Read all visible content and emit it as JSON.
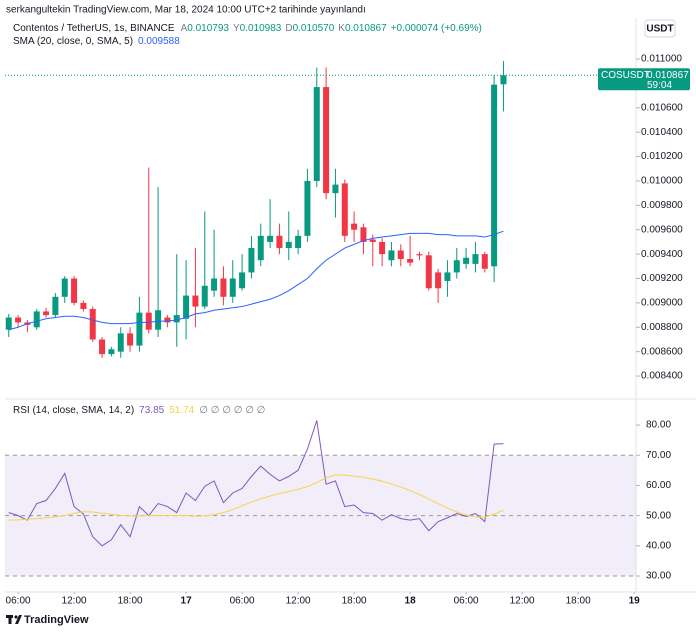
{
  "published": "serkangultekin TradingView.com, Mar 18, 2024 10:00 UTC+2 tarihinde yayınlandı",
  "footer": "TradingView",
  "chart_data": [
    {
      "type": "candlestick",
      "title": "Contentos / TetherUS, 1s, BINANCE",
      "legend": [
        {
          "label": "A",
          "value": "0.010793"
        },
        {
          "label": "Y",
          "value": "0.010983"
        },
        {
          "label": "D",
          "value": "0.010570"
        },
        {
          "label": "K",
          "value": "0.010867"
        }
      ],
      "change": "+0.000074 (+0.69%)",
      "currency": "USDT",
      "up_color": "#089981",
      "down_color": "#f23645",
      "open": [
        0.00878,
        0.00888,
        0.00884,
        0.0088,
        0.00893,
        0.0089,
        0.00905,
        0.0092,
        0.009,
        0.00895,
        0.0087,
        0.00858,
        0.0086,
        0.00875,
        0.00865,
        0.00892,
        0.00878,
        0.00888,
        0.00884,
        0.00887,
        0.00906,
        0.00897,
        0.0091,
        0.0092,
        0.00905,
        0.00912,
        0.00925,
        0.00935,
        0.0095,
        0.00955,
        0.00945,
        0.00945,
        0.00955,
        0.01,
        0.01077,
        0.0099,
        0.00998,
        0.00965,
        0.00962,
        0.00952,
        0.0095,
        0.00935,
        0.00943,
        0.00936,
        0.0094,
        0.00939,
        0.00925,
        0.00918,
        0.00925,
        0.00932,
        0.00932,
        0.0094,
        0.0093,
        0.010793
      ],
      "high": [
        0.00891,
        0.0089,
        0.00886,
        0.00895,
        0.00896,
        0.00908,
        0.00922,
        0.00922,
        0.00902,
        0.00897,
        0.00872,
        0.00864,
        0.0088,
        0.0088,
        0.00905,
        0.01011,
        0.00995,
        0.0089,
        0.0094,
        0.00935,
        0.00945,
        0.00975,
        0.0096,
        0.0093,
        0.00935,
        0.0094,
        0.00955,
        0.00965,
        0.00985,
        0.00965,
        0.00975,
        0.0096,
        0.0101,
        0.01093,
        0.01093,
        0.0101,
        0.01001,
        0.00975,
        0.00965,
        0.00956,
        0.00953,
        0.0095,
        0.00948,
        0.00955,
        0.00942,
        0.00942,
        0.00928,
        0.00935,
        0.00945,
        0.00945,
        0.0095,
        0.00942,
        0.01087,
        0.010983
      ],
      "low": [
        0.00872,
        0.0088,
        0.00876,
        0.00878,
        0.00888,
        0.00888,
        0.009,
        0.00898,
        0.00893,
        0.00868,
        0.00855,
        0.00856,
        0.00855,
        0.0086,
        0.0086,
        0.00875,
        0.00872,
        0.0088,
        0.00864,
        0.0087,
        0.0088,
        0.00895,
        0.00905,
        0.00898,
        0.009,
        0.0091,
        0.0092,
        0.0093,
        0.00945,
        0.0094,
        0.00935,
        0.0094,
        0.0095,
        0.00995,
        0.00985,
        0.0097,
        0.0095,
        0.0095,
        0.0094,
        0.0093,
        0.0093,
        0.0093,
        0.0093,
        0.0093,
        0.00935,
        0.0091,
        0.009,
        0.00905,
        0.0092,
        0.00928,
        0.00925,
        0.00925,
        0.00917,
        0.01057
      ],
      "close": [
        0.00888,
        0.00884,
        0.00882,
        0.00893,
        0.0089,
        0.00905,
        0.0092,
        0.009,
        0.00895,
        0.0087,
        0.00858,
        0.00862,
        0.00875,
        0.00865,
        0.00892,
        0.00878,
        0.00894,
        0.00884,
        0.0089,
        0.00906,
        0.00897,
        0.00914,
        0.0092,
        0.00905,
        0.0092,
        0.00925,
        0.00945,
        0.00955,
        0.00955,
        0.00945,
        0.0095,
        0.00955,
        0.01,
        0.01077,
        0.0099,
        0.00997,
        0.00955,
        0.0096,
        0.0095,
        0.0095,
        0.0094,
        0.00943,
        0.00936,
        0.00933,
        0.00939,
        0.00912,
        0.00912,
        0.00925,
        0.00935,
        0.00937,
        0.0094,
        0.00928,
        0.01079,
        0.010867
      ],
      "sma": {
        "name": "SMA (20, close, 0, SMA, 5)",
        "value_label": "0.009588",
        "color": "#2962ff",
        "values": [
          0.00878,
          0.0088,
          0.00883,
          0.00885,
          0.00887,
          0.00888,
          0.00889,
          0.00889,
          0.00888,
          0.00886,
          0.00884,
          0.00883,
          0.00883,
          0.00883,
          0.00884,
          0.00884,
          0.00885,
          0.00885,
          0.00886,
          0.00888,
          0.00891,
          0.00892,
          0.00894,
          0.00895,
          0.00896,
          0.00897,
          0.00899,
          0.00901,
          0.00903,
          0.00906,
          0.0091,
          0.00915,
          0.0092,
          0.00928,
          0.00935,
          0.0094,
          0.00945,
          0.00948,
          0.00951,
          0.00953,
          0.00954,
          0.00955,
          0.00956,
          0.00957,
          0.00957,
          0.00957,
          0.00956,
          0.00956,
          0.00955,
          0.00955,
          0.00955,
          0.00954,
          0.00956,
          0.009588
        ]
      },
      "last_price": 0.010867,
      "last_price_label": "0.010867",
      "symbol": "COSUSDT",
      "countdown": "59:04",
      "ylim": [
        0.00822,
        0.01132
      ],
      "yticks": [
        {
          "value": 0.011,
          "label": "0.011000"
        },
        {
          "value": 0.0108,
          "label": "0.010800"
        },
        {
          "value": 0.0106,
          "label": "0.010600"
        },
        {
          "value": 0.0104,
          "label": "0.010400"
        },
        {
          "value": 0.0102,
          "label": "0.010200"
        },
        {
          "value": 0.01,
          "label": "0.010000"
        },
        {
          "value": 0.0098,
          "label": "0.009800"
        },
        {
          "value": 0.0096,
          "label": "0.009600"
        },
        {
          "value": 0.0094,
          "label": "0.009400"
        },
        {
          "value": 0.0092,
          "label": "0.009200"
        },
        {
          "value": 0.009,
          "label": "0.009000"
        },
        {
          "value": 0.0088,
          "label": "0.008800"
        },
        {
          "value": 0.0086,
          "label": "0.008600"
        },
        {
          "value": 0.0084,
          "label": "0.008400"
        }
      ],
      "xlim": [
        -0.4,
        67.2
      ],
      "xticks": [
        {
          "value": 1,
          "label": "06:00"
        },
        {
          "value": 7,
          "label": "12:00"
        },
        {
          "value": 13,
          "label": "18:00"
        },
        {
          "value": 19,
          "label": "17"
        },
        {
          "value": 25,
          "label": "06:00"
        },
        {
          "value": 31,
          "label": "12:00"
        },
        {
          "value": 37,
          "label": "18:00"
        },
        {
          "value": 43,
          "label": "18"
        },
        {
          "value": 49,
          "label": "06:00"
        },
        {
          "value": 55,
          "label": "12:00"
        },
        {
          "value": 61,
          "label": "18:00"
        },
        {
          "value": 67,
          "label": "19"
        }
      ]
    },
    {
      "type": "line",
      "title": "RSI (14, close, SMA, 14, 2)",
      "extra": "∅ ∅ ∅ ∅ ∅ ∅",
      "series": [
        {
          "color": "#7e57c2",
          "value_label": "73.85",
          "values": [
            51,
            50,
            48.5,
            54,
            55,
            59,
            64,
            53,
            50.5,
            43,
            40,
            42,
            47,
            43,
            53,
            50,
            54,
            53,
            51,
            57.5,
            55,
            59.7,
            61.5,
            54.3,
            57.5,
            59,
            63,
            66.4,
            63.7,
            61.5,
            63,
            65,
            72,
            81.5,
            60.4,
            61.5,
            53,
            53.5,
            51,
            50.7,
            48.5,
            50.3,
            49,
            48.5,
            49,
            45,
            48,
            49.3,
            50.7,
            49.7,
            50.7,
            48,
            73.7,
            73.85
          ]
        },
        {
          "color": "#f5d547",
          "value_label": "51.74",
          "values": [
            48.5,
            48.6,
            48.8,
            49.0,
            49.3,
            49.6,
            50.1,
            50.8,
            51.3,
            51.2,
            50.8,
            50.4,
            50.1,
            49.9,
            49.9,
            50.0,
            50.1,
            50.0,
            50.0,
            50.0,
            49.8,
            49.9,
            50.3,
            51.0,
            52.0,
            53.3,
            54.5,
            55.6,
            56.5,
            57.3,
            58.0,
            58.7,
            59.6,
            61.0,
            62.5,
            63.5,
            63.4,
            63.1,
            62.7,
            62.1,
            61.4,
            60.5,
            59.5,
            58.3,
            57.0,
            55.5,
            54.0,
            52.5,
            51.2,
            50.2,
            49.6,
            49.5,
            50.5,
            51.74
          ]
        }
      ],
      "hlines": [
        70,
        50,
        30
      ],
      "band_color": "#7e57c2",
      "ylim": [
        24.7,
        88.3
      ],
      "yticks": [
        {
          "value": 80,
          "label": "80.00"
        },
        {
          "value": 70,
          "label": "70.00"
        },
        {
          "value": 60,
          "label": "60.00"
        },
        {
          "value": 50,
          "label": "50.00"
        },
        {
          "value": 40,
          "label": "40.00"
        },
        {
          "value": 30,
          "label": "30.00"
        }
      ]
    }
  ]
}
